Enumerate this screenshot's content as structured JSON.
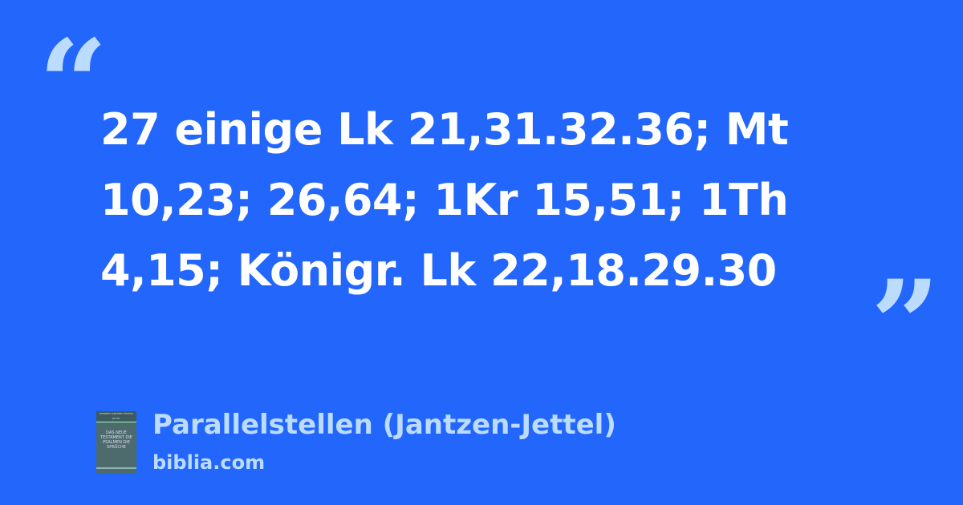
{
  "quote": {
    "open_mark": "“",
    "text": "27 einige Lk 21,31.32.36; Mt 10,23; 26,64; 1Kr 15,51; 1Th 4,15; Königr. Lk 22,18.29.30",
    "close_mark": "”"
  },
  "source": {
    "cover": {
      "authors": "HERBERT JANTZEN THOMAS JETTEL",
      "title": "DAS NEUE TESTAMENT DIE PSALMEN DIE SPRÜCHE"
    },
    "title": "Parallelstellen (Jantzen-Jettel)",
    "site": "biblia.com"
  },
  "colors": {
    "background": "#2266fc",
    "accent": "#bcdcff",
    "text": "#ffffff"
  }
}
